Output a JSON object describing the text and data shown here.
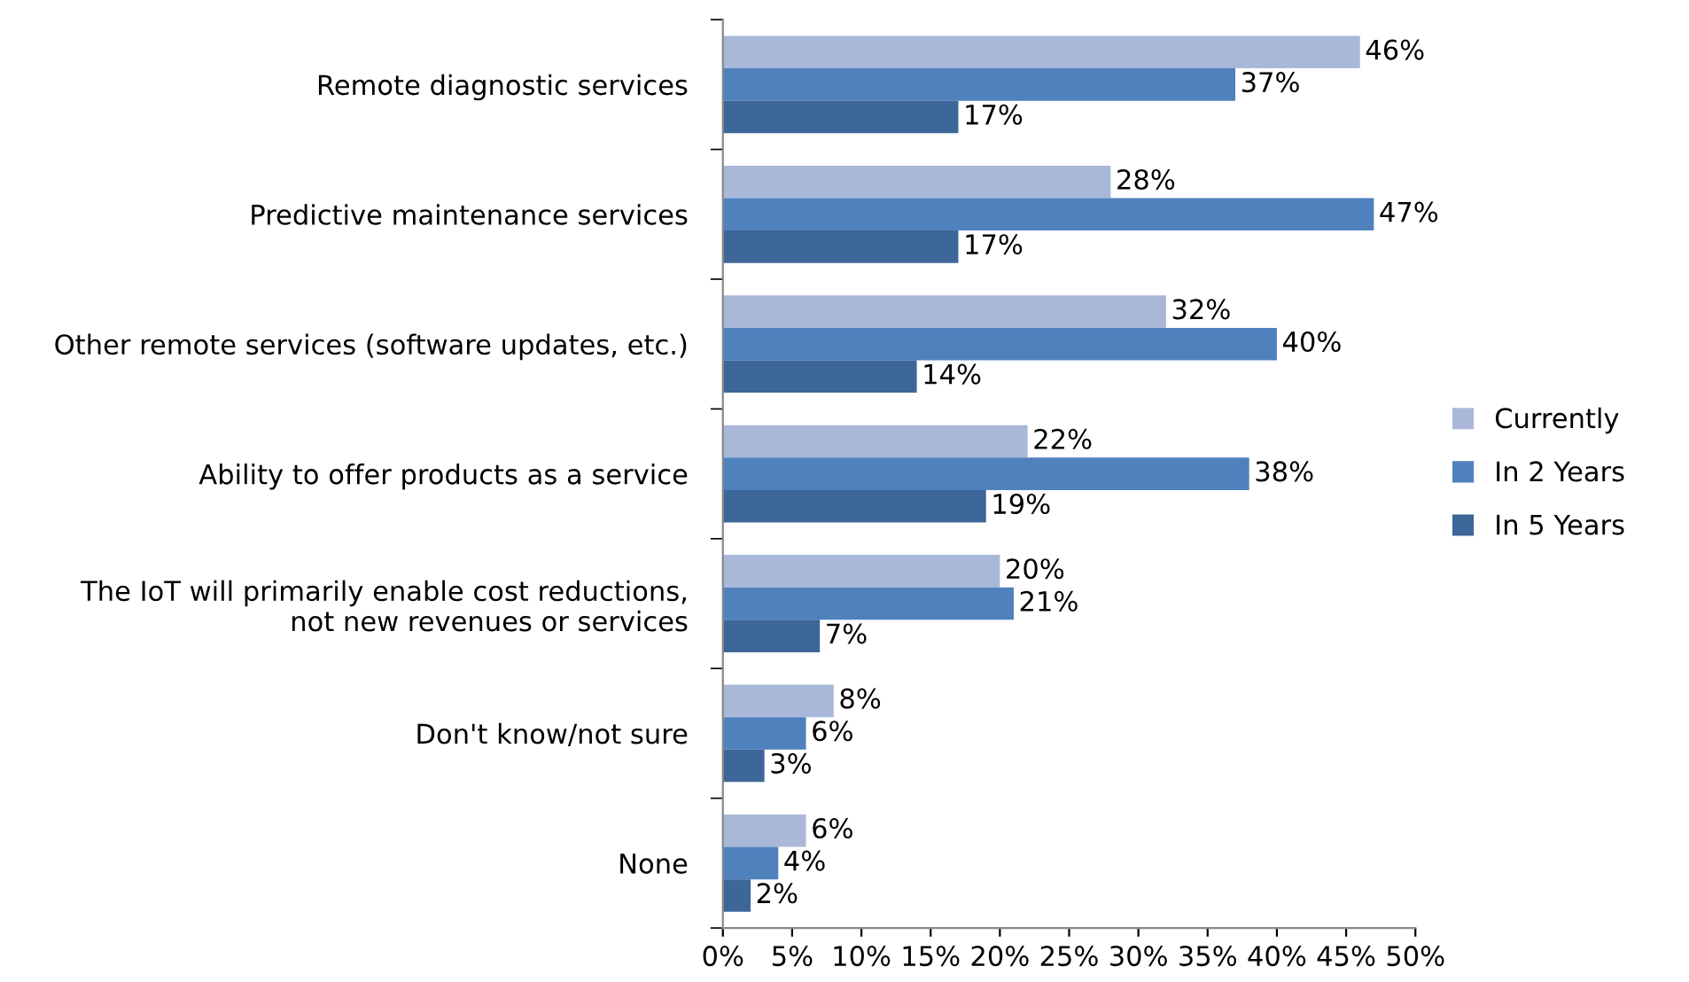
{
  "chart_data": {
    "type": "bar",
    "orientation": "horizontal",
    "categories": [
      "Remote diagnostic services",
      "Predictive maintenance services",
      "Other remote services (software updates, etc.)",
      "Ability to offer products as a service",
      "The IoT will primarily enable cost reductions,\nnot new revenues or services",
      "Don't know/not sure",
      "None"
    ],
    "series": [
      {
        "name": "Currently",
        "color": "#a9b8d9",
        "values": [
          46,
          28,
          32,
          22,
          20,
          8,
          6
        ],
        "value_labels": [
          "46%",
          "28%",
          "32%",
          "22%",
          "20%",
          "8%",
          "6%"
        ]
      },
      {
        "name": "In 2 Years",
        "color": "#4f81bd",
        "values": [
          37,
          47,
          40,
          38,
          21,
          6,
          4
        ],
        "value_labels": [
          "37%",
          "47%",
          "40%",
          "38%",
          "21%",
          "6%",
          "4%"
        ]
      },
      {
        "name": "In 5 Years",
        "color": "#3d6699",
        "values": [
          17,
          17,
          14,
          19,
          7,
          3,
          2
        ],
        "value_labels": [
          "17%",
          "17%",
          "14%",
          "19%",
          "7%",
          "3%",
          "2%"
        ]
      }
    ],
    "xlim": [
      0,
      50
    ],
    "xticks": [
      {
        "value": 0,
        "label": "0%"
      },
      {
        "value": 5,
        "label": "5%"
      },
      {
        "value": 10,
        "label": "10%"
      },
      {
        "value": 15,
        "label": "15%"
      },
      {
        "value": 20,
        "label": "20%"
      },
      {
        "value": 25,
        "label": "25%"
      },
      {
        "value": 30,
        "label": "30%"
      },
      {
        "value": 35,
        "label": "35%"
      },
      {
        "value": 40,
        "label": "40%"
      },
      {
        "value": 45,
        "label": "45%"
      },
      {
        "value": 50,
        "label": "50%"
      }
    ],
    "grid": false,
    "legend": "right"
  }
}
